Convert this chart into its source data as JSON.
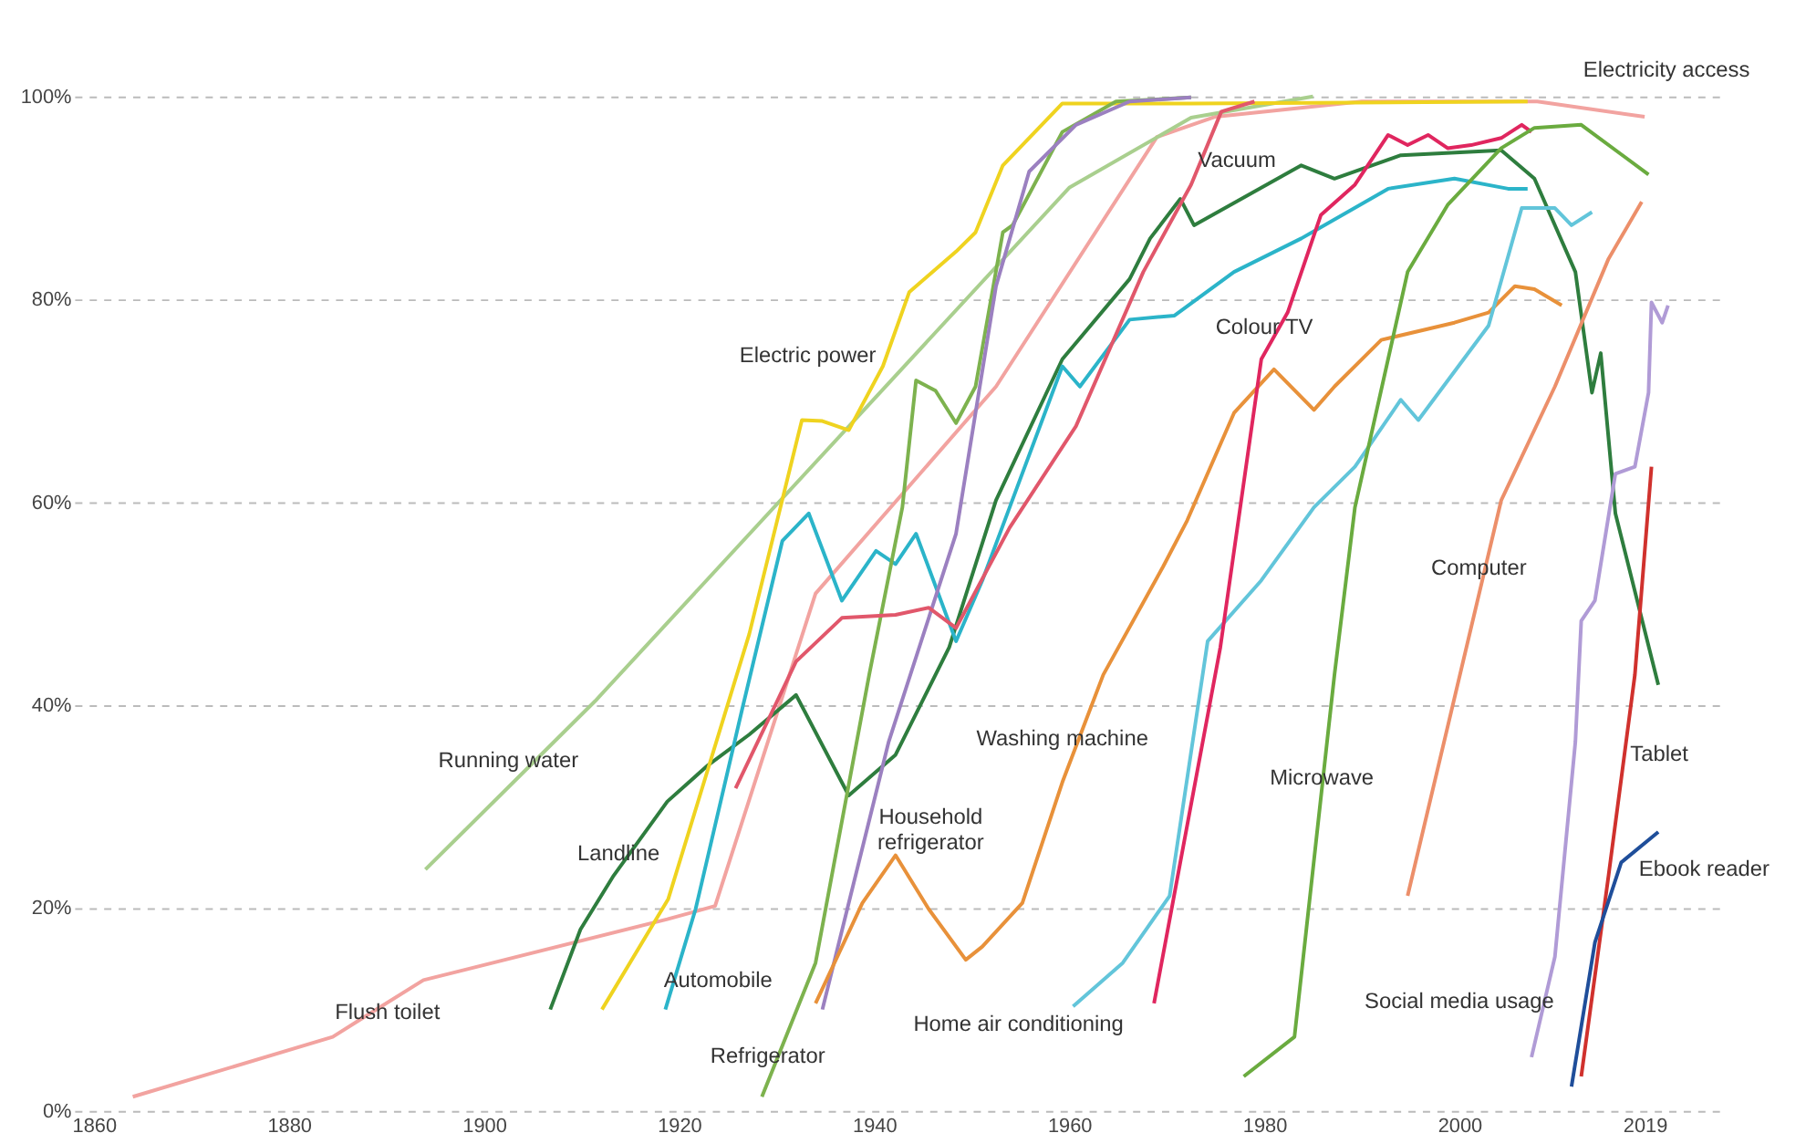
{
  "chart_data": {
    "type": "line",
    "xlim": [
      1858,
      2027
    ],
    "ylim": [
      0,
      100
    ],
    "xticks": [
      1860,
      1880,
      1900,
      1920,
      1940,
      1960,
      1980,
      2000,
      2019
    ],
    "yticks": [
      {
        "value": 0,
        "label": "0%"
      },
      {
        "value": 20,
        "label": "20%"
      },
      {
        "value": 40,
        "label": "40%"
      },
      {
        "value": 60,
        "label": "60%"
      },
      {
        "value": 80,
        "label": "80%"
      },
      {
        "value": 100,
        "label": "100%"
      }
    ],
    "grid": "y",
    "legend": false,
    "line_style": "solid",
    "marker": "none",
    "annotations": [
      "Electricity access"
    ],
    "series": [
      {
        "name": "Flush toilet",
        "color": "#f2a3a0",
        "x": [
          1864,
          1884.5,
          1887.3,
          1893.8,
          1918.8,
          1923.7,
          1934,
          1952.5,
          1969,
          1975,
          1990,
          2008,
          2019
        ],
        "values": [
          1.4,
          7.3,
          9,
          12.9,
          18.9,
          20.2,
          51,
          71.4,
          96,
          98,
          99.5,
          99.5,
          98
        ]
      },
      {
        "name": "Running water",
        "color": "#a9cf8e",
        "x": [
          1894,
          1911.4,
          1960,
          1972.5,
          1985
        ],
        "values": [
          23.8,
          40.4,
          91,
          97.9,
          100
        ]
      },
      {
        "name": "Landline",
        "color": "#2e7d3e",
        "x": [
          1906.8,
          1909.9,
          1913.3,
          1918.8,
          1923,
          1927.2,
          1932,
          1937.4,
          1942.2,
          1947.7,
          1952.5,
          1959.3,
          1966.2,
          1968.3,
          1971.4,
          1972.8,
          1983.8,
          1987.2,
          1994,
          2004.3,
          2007.7,
          2011.9,
          2013.6,
          2014.5,
          2016,
          2020.4
        ],
        "values": [
          10,
          17.9,
          23.2,
          30.5,
          34.1,
          37.1,
          41,
          31.1,
          35.1,
          45.7,
          60.2,
          74.1,
          82,
          86,
          89.9,
          87.3,
          93.2,
          91.9,
          94.2,
          94.7,
          91.9,
          82.7,
          70.8,
          74.7,
          58.9,
          42
        ]
      },
      {
        "name": "Automobile",
        "color": "#2bb4c9",
        "x": [
          1918.6,
          1921.7,
          1926.5,
          1930.6,
          1933.3,
          1936.7,
          1940.2,
          1942.2,
          1944.3,
          1948.4,
          1951.1,
          1953.9,
          1959.3,
          1961.1,
          1966.2,
          1970.8,
          1976.9,
          1983.8,
          1992.7,
          1999.5,
          2005,
          2007
        ],
        "values": [
          10,
          19.9,
          39.7,
          56.2,
          58.9,
          50.3,
          55.2,
          53.9,
          56.9,
          46.3,
          52.3,
          59.5,
          73.4,
          71.4,
          78,
          78.4,
          82.7,
          86,
          90.9,
          91.9,
          90.9,
          90.9
        ]
      },
      {
        "name": "Electric power",
        "color": "#efd31f",
        "x": [
          1912.1,
          1918.9,
          1927.2,
          1932.6,
          1934.7,
          1937.4,
          1940.9,
          1943.6,
          1948.4,
          1950.4,
          1953.2,
          1959.3,
          1972.5,
          2007
        ],
        "values": [
          10,
          20.9,
          47,
          68.1,
          68,
          67.1,
          73.4,
          80.7,
          84.7,
          86.6,
          93.2,
          99.3,
          99.3,
          99.5
        ]
      },
      {
        "name": "Refrigerator",
        "color": "#7db24e",
        "x": [
          1928.5,
          1934,
          1939.5,
          1942.9,
          1944.3,
          1946.3,
          1948.4,
          1950.4,
          1953.2,
          1954.2,
          1959.3,
          1964.8,
          1972.5
        ],
        "values": [
          1.4,
          14.6,
          43,
          59.5,
          72,
          71,
          67.8,
          71.4,
          86.6,
          87.3,
          96.5,
          99.5,
          99.9
        ]
      },
      {
        "name": "Household refrigerator",
        "color": "#9b80c0",
        "x": [
          1934.7,
          1941.5,
          1948.4,
          1952.5,
          1955.9,
          1960.7,
          1966.2,
          1972.5
        ],
        "values": [
          10,
          36.4,
          56.9,
          81.3,
          92.6,
          97.2,
          99.5,
          99.9
        ]
      },
      {
        "name": "Washing machine",
        "color": "#e8913a",
        "x": [
          1934,
          1938.8,
          1942.2,
          1945.6,
          1949.4,
          1951.1,
          1955.2,
          1959.3,
          1963.5,
          1969.6,
          1972.1,
          1976.9,
          1981,
          1985.1,
          1987.2,
          1992,
          1999.5,
          2003,
          2005.7,
          2007.7,
          2010.5
        ],
        "values": [
          10.6,
          20.5,
          25.2,
          19.9,
          14.9,
          16.2,
          20.5,
          32.4,
          43,
          53.6,
          58.2,
          68.8,
          73.1,
          69.1,
          71.4,
          76,
          77.7,
          78.7,
          81.3,
          81,
          79.4
        ]
      },
      {
        "name": "Home air conditioning",
        "color": "#62c5da",
        "x": [
          1960.4,
          1965.5,
          1970.3,
          1974.2,
          1979.7,
          1985.1,
          1989.3,
          1994,
          1995.8,
          2003,
          2006.4,
          2009.8,
          2011.5,
          2013.6
        ],
        "values": [
          10.3,
          14.6,
          21.2,
          46.3,
          52.3,
          59.5,
          63.5,
          70.1,
          68.1,
          77.4,
          89,
          89,
          87.3,
          88.6
        ]
      },
      {
        "name": "Vacuum",
        "color": "#e1576b",
        "x": [
          1925.8,
          1932,
          1936.7,
          1942.2,
          1945.6,
          1948.4,
          1953.9,
          1960.7,
          1967.6,
          1972.5,
          1975.6,
          1979
        ],
        "values": [
          31.8,
          44.3,
          48.6,
          48.9,
          49.6,
          47.6,
          57.5,
          67.5,
          82.7,
          91.3,
          98.5,
          99.5
        ]
      },
      {
        "name": "Colour TV",
        "color": "#e0265f",
        "x": [
          1968.7,
          1975.5,
          1979.7,
          1982.4,
          1985.8,
          1989.3,
          1992.7,
          1994.7,
          1996.8,
          1998.8,
          2001.2,
          2004.3,
          2006.4,
          2007.4
        ],
        "values": [
          10.6,
          45.7,
          74.1,
          78.7,
          88.3,
          91.3,
          96.2,
          95.2,
          96.2,
          94.9,
          95.2,
          95.9,
          97.2,
          96.5
        ]
      },
      {
        "name": "Microwave",
        "color": "#6aab3f",
        "x": [
          1977.9,
          1983.1,
          1987.2,
          1989.3,
          1994.7,
          1998.8,
          2004.3,
          2007.7,
          2012.5,
          2019.4
        ],
        "values": [
          3.4,
          7.3,
          43,
          59.5,
          82.7,
          89.3,
          94.9,
          96.9,
          97.2,
          92.3
        ]
      },
      {
        "name": "Computer",
        "color": "#ec8f6a",
        "x": [
          1994.7,
          2004.3,
          2009.8,
          2015.3,
          2018.7
        ],
        "values": [
          21.2,
          60.2,
          71.4,
          84,
          89.6
        ]
      },
      {
        "name": "Social media usage",
        "color": "#b09bd6",
        "x": [
          2007.4,
          2009.8,
          2011.9,
          2012.5,
          2013.9,
          2016,
          2018,
          2019.4,
          2019.7,
          2020.8,
          2021.4
        ],
        "values": [
          5.3,
          15.2,
          36.4,
          48.3,
          50.3,
          62.8,
          63.5,
          70.8,
          79.7,
          77.7,
          79.4
        ]
      },
      {
        "name": "Tablet",
        "color": "#d0312d",
        "x": [
          2012.5,
          2015.3,
          2018,
          2019.7
        ],
        "values": [
          3.4,
          23.2,
          43,
          63.5
        ]
      },
      {
        "name": "Ebook reader",
        "color": "#1f4e9a",
        "x": [
          2011.5,
          2013.9,
          2016.6,
          2020.4
        ],
        "values": [
          2.4,
          16.6,
          24.5,
          27.5
        ]
      }
    ]
  }
}
